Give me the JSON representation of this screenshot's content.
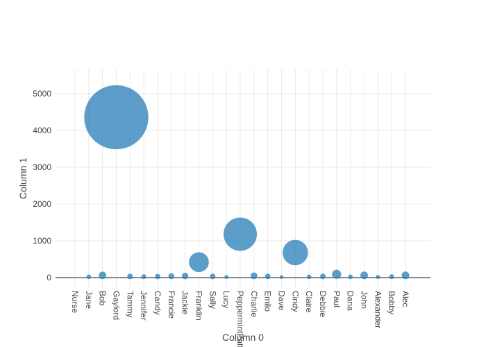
{
  "figure": {
    "background": "#ffffff",
    "plot_background": "#ffffff"
  },
  "chart_data": {
    "type": "scatter-bubble",
    "title": "",
    "xlabel": "Column 0",
    "ylabel": "Column 1",
    "categories": [
      "Nurse",
      "Jane",
      "Bob",
      "Gaylord",
      "Tammy",
      "Jennifer",
      "Candy",
      "Francie",
      "Jackie",
      "Franklin",
      "Sally",
      "Lucy",
      "PeppermintPatty",
      "Charlie",
      "Emilo",
      "Dave",
      "Cindy",
      "Claire",
      "Debbie",
      "Paul",
      "Dana",
      "John",
      "Alexander",
      "Bobby",
      "Alec"
    ],
    "values": [
      0,
      22,
      60,
      4360,
      32,
      25,
      30,
      38,
      45,
      420,
      33,
      16,
      1180,
      50,
      33,
      15,
      680,
      22,
      33,
      90,
      22,
      62,
      18,
      25,
      62
    ],
    "marker_sizing": "area-proportional-to-value",
    "yticks": [
      0,
      1000,
      2000,
      3000,
      4000,
      5000
    ],
    "ylim": [
      -283,
      5660
    ],
    "grid": true,
    "legend": false,
    "colors": {
      "marker": "#1f77b4",
      "marker_opacity": 0.72,
      "gridline": "#e9e9e9",
      "zeroline": "#888888",
      "tick_label": "#444444",
      "axis_title": "#444444"
    }
  }
}
